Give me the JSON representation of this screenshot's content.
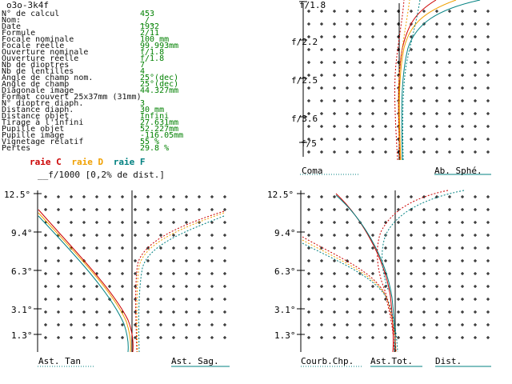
{
  "window": {
    "title": "o3o-3k4f"
  },
  "data_panel": {
    "rows": [
      {
        "label": "N° de calcul",
        "value": "453"
      },
      {
        "label": "Nom:",
        "value": "_/_"
      },
      {
        "label": "Date",
        "value": "1932"
      },
      {
        "label": "Formule",
        "value": "2/11"
      },
      {
        "label": "Focale nominale",
        "value": "100    mm"
      },
      {
        "label": "Focale réelle",
        "value": "99.993mm"
      },
      {
        "label": "Ouverture nominale",
        "value": "f/1.8"
      },
      {
        "label": "Ouverture réelle",
        "value": "f/1.8"
      },
      {
        "label": "Nb de dioptres",
        "value": "7"
      },
      {
        "label": "Nb de lentilles",
        "value": "4"
      },
      {
        "label": "Angle de champ nom.",
        "value": "25°(dec)"
      },
      {
        "label": "Angle de champ",
        "value": "25°(dec)"
      },
      {
        "label": "Diagonale image",
        "value": "44.327mm"
      },
      {
        "label": "Format couvert 25x37mm (31mm)",
        "value": ""
      },
      {
        "label": "N° dioptre diaph.",
        "value": "3"
      },
      {
        "label": "Distance diaph.",
        "value": "30     mm"
      },
      {
        "label": "Distance objet",
        "value": "Infini"
      },
      {
        "label": "Tirage à l'infini",
        "value": "27.631mm"
      },
      {
        "label": "Pupille objet",
        "value": "52.227mm"
      },
      {
        "label": "Pupille image",
        "value": "-116.05mm"
      },
      {
        "label": "Vignetage relatif",
        "value": "55 %"
      },
      {
        "label": "Pertes",
        "value": "29.8 %"
      }
    ]
  },
  "legend": {
    "items": [
      {
        "label": "raie C",
        "color": "#cc0000"
      },
      {
        "label": "raie D",
        "color": "#f0a000"
      },
      {
        "label": "raie F",
        "color": "#008080"
      }
    ],
    "distortion_note": "__f/1000 [0,2% de dist.]"
  },
  "plots": {
    "top_right": {
      "y_ticks": [
        "f/1.8",
        "f/2.2",
        "f/2.5",
        "f/3.6",
        "f/5"
      ],
      "bottom_left_label": "Coma",
      "bottom_right_label": "Ab. Sphé."
    },
    "bottom_left": {
      "y_ticks": [
        "12.5°",
        "9.4°",
        "6.3°",
        "3.1°",
        "1.3°"
      ],
      "bottom_left_label": "Ast. Tan",
      "bottom_right_label": "Ast. Sag."
    },
    "bottom_right": {
      "y_ticks": [
        "12.5°",
        "9.4°",
        "6.3°",
        "3.1°",
        "1.3°"
      ],
      "bottom_labels": [
        "Courb.Chp.",
        "Ast.Tot.",
        "Dist."
      ]
    }
  },
  "colors": {
    "C": "#cc0000",
    "D": "#f0a000",
    "F": "#008080",
    "axis": "#000000",
    "text_value": "#008000"
  }
}
